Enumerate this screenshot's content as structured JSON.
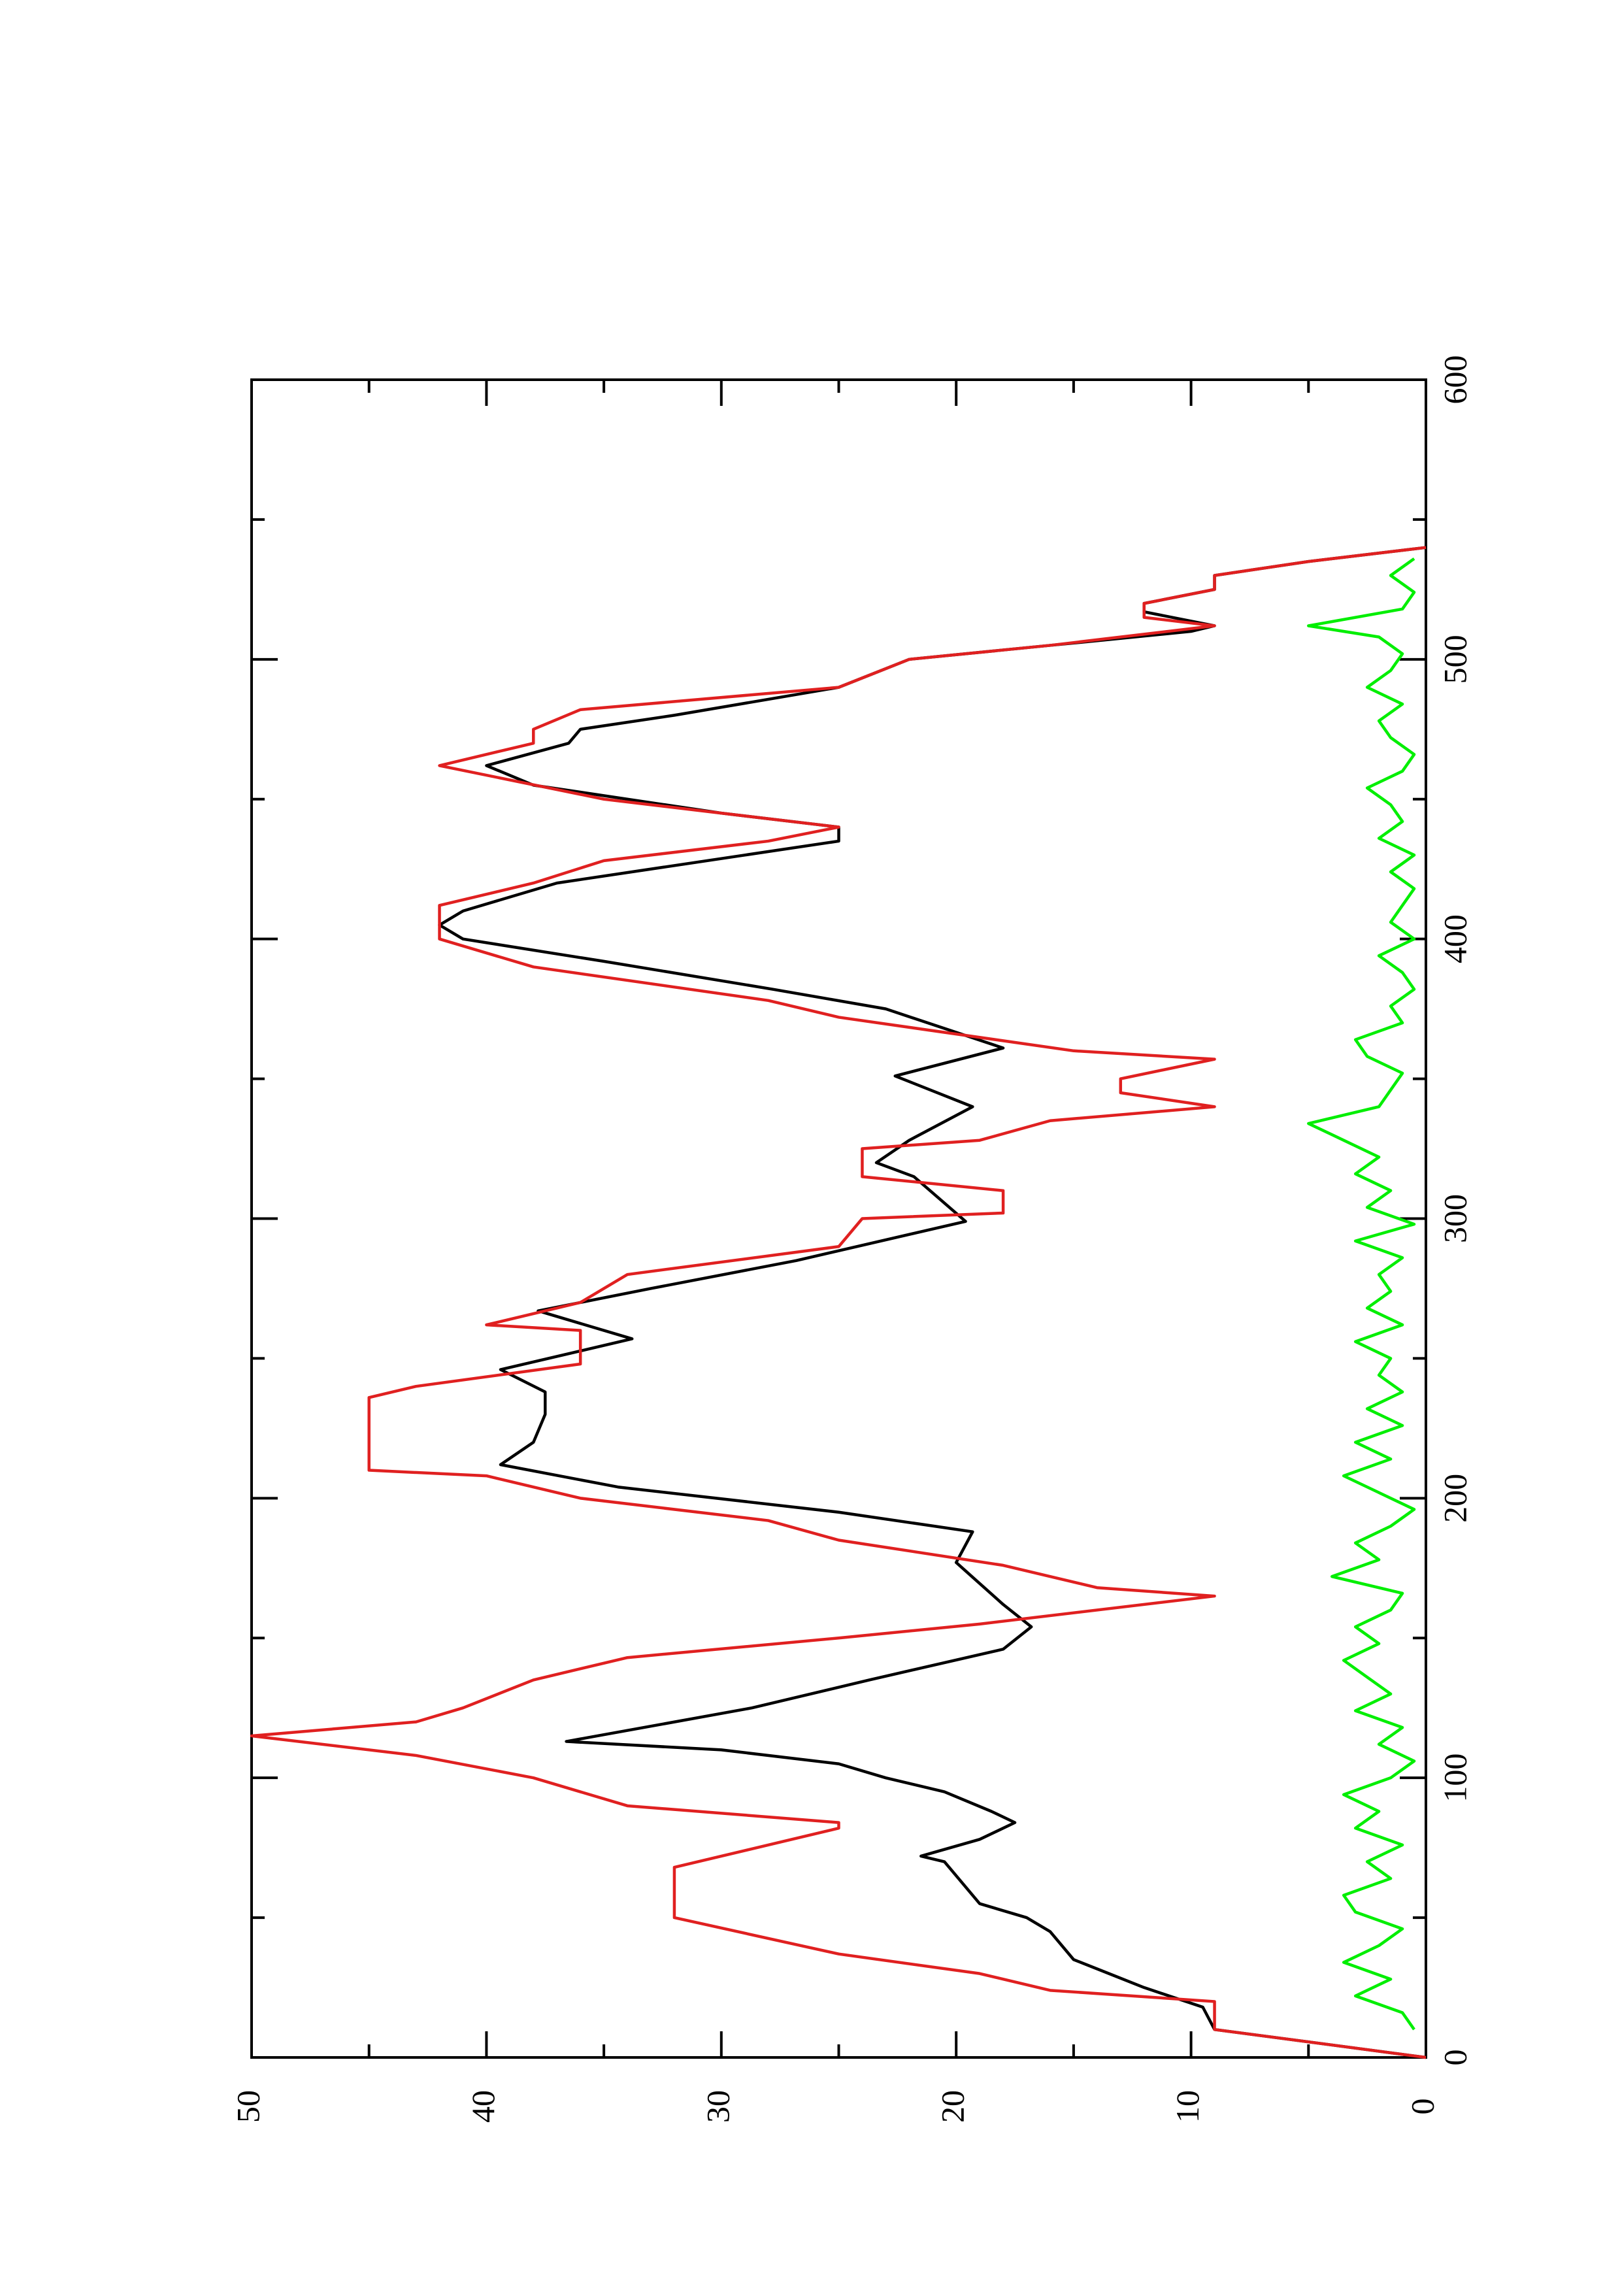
{
  "chart_data": {
    "type": "line",
    "xlim": [
      0,
      600
    ],
    "xticks": [
      0,
      100,
      200,
      300,
      400,
      500,
      600
    ],
    "xminorticks": [
      50,
      150,
      250,
      350,
      450,
      550
    ],
    "ylim": [
      0,
      50
    ],
    "yticks": [
      0,
      10,
      20,
      30,
      40,
      50
    ],
    "yminorticks": [
      5,
      15,
      25,
      35,
      45
    ],
    "series": [
      {
        "color": "#000000",
        "x": [
          0,
          10,
          18,
          25,
          30,
          35,
          45,
          50,
          55,
          60,
          65,
          70,
          72,
          78,
          84,
          88,
          95,
          100,
          105,
          110,
          113,
          125,
          135,
          146,
          154,
          162,
          177,
          188,
          195,
          204,
          212,
          220,
          230,
          238,
          246,
          257,
          267,
          275,
          285,
          299,
          315,
          320,
          328,
          340,
          351,
          361,
          375,
          382,
          392,
          400,
          405,
          410,
          420,
          430,
          435,
          440,
          445,
          455,
          462,
          470,
          475,
          480,
          490,
          500,
          505,
          510,
          512,
          517,
          520,
          525,
          530,
          535,
          540
        ],
        "values": [
          0,
          9,
          9.5,
          12,
          13.5,
          15,
          16,
          17,
          19,
          19.5,
          20,
          20.5,
          21.5,
          19,
          17.5,
          18.5,
          20.5,
          23,
          25,
          30,
          36.6,
          28.7,
          23.7,
          18,
          16.8,
          18,
          20,
          19.3,
          25,
          34.4,
          39.4,
          38,
          37.5,
          37.5,
          39.4,
          33.8,
          37.8,
          33,
          26.8,
          19.6,
          21.8,
          23.4,
          22,
          19.3,
          22.6,
          18,
          23,
          27.8,
          35,
          41,
          42,
          41,
          37,
          29,
          25,
          25,
          30,
          38,
          40,
          36.5,
          36,
          32,
          25,
          22,
          16,
          10,
          9,
          12,
          12,
          9,
          9,
          5,
          0
        ]
      },
      {
        "color": "#e02020",
        "x": [
          0,
          10,
          20,
          24,
          30,
          37,
          50,
          68,
          82,
          84,
          90,
          100,
          108,
          115,
          120,
          125,
          135,
          143,
          150,
          155,
          165,
          168,
          176,
          185,
          192,
          200,
          208,
          210,
          236,
          240,
          248,
          260,
          262,
          270,
          280,
          290,
          300,
          302,
          310,
          315,
          325,
          328,
          335,
          340,
          345,
          350,
          357,
          360,
          372,
          378,
          390,
          400,
          412,
          420,
          428,
          435,
          440,
          450,
          462,
          470,
          475,
          482,
          490,
          500,
          505,
          512,
          515,
          520,
          525,
          530,
          535,
          540
        ],
        "values": [
          0,
          9,
          9,
          16,
          19,
          25,
          32,
          32,
          25,
          25,
          34,
          38,
          43,
          50,
          43,
          41,
          38,
          34,
          25,
          19,
          9,
          14,
          18,
          25,
          28,
          36,
          40,
          45,
          45,
          43,
          36,
          36,
          40,
          36,
          34,
          25,
          24,
          18,
          18,
          24,
          24,
          19,
          16,
          9,
          13,
          13,
          9,
          15,
          25,
          28,
          38,
          42,
          42,
          38,
          35,
          28,
          25,
          35,
          42,
          38,
          38,
          36,
          25,
          22,
          16,
          9,
          12,
          12,
          9,
          9,
          5,
          0
        ]
      },
      {
        "color": "#00ee00",
        "x": [
          10,
          16,
          22,
          28,
          34,
          40,
          46,
          52,
          58,
          64,
          70,
          76,
          82,
          88,
          94,
          100,
          106,
          112,
          118,
          124,
          130,
          136,
          142,
          148,
          154,
          160,
          166,
          172,
          178,
          184,
          190,
          196,
          202,
          208,
          214,
          220,
          226,
          232,
          238,
          244,
          250,
          256,
          262,
          268,
          274,
          280,
          286,
          292,
          298,
          304,
          310,
          316,
          322,
          328,
          334,
          340,
          346,
          352,
          358,
          364,
          370,
          376,
          382,
          388,
          394,
          400,
          406,
          412,
          418,
          424,
          430,
          436,
          442,
          448,
          454,
          460,
          466,
          472,
          478,
          484,
          490,
          496,
          502,
          508,
          512,
          518,
          524,
          530,
          536
        ],
        "values": [
          0.5,
          1,
          3,
          1.5,
          3.5,
          2,
          1,
          3,
          3.5,
          1.5,
          2.5,
          1,
          3,
          2,
          3.5,
          1.5,
          0.5,
          2,
          1,
          3,
          1.5,
          2.5,
          3.5,
          2,
          3,
          1.5,
          1,
          4,
          2,
          3,
          1.5,
          0.5,
          2,
          3.5,
          1.5,
          3,
          1,
          2.5,
          1,
          2,
          1.5,
          3,
          1,
          2.5,
          1.5,
          2,
          1,
          3,
          0.5,
          2.5,
          1.5,
          3,
          2,
          3.5,
          5,
          2,
          1.5,
          1,
          2.5,
          3,
          1,
          1.5,
          0.5,
          1,
          2,
          0.5,
          1.5,
          1,
          0.5,
          1.5,
          0.5,
          2,
          1,
          1.5,
          2.5,
          1,
          0.5,
          1.5,
          2,
          1,
          2.5,
          1.5,
          1,
          2,
          5,
          1,
          0.5,
          1.5,
          0.5
        ]
      }
    ]
  }
}
